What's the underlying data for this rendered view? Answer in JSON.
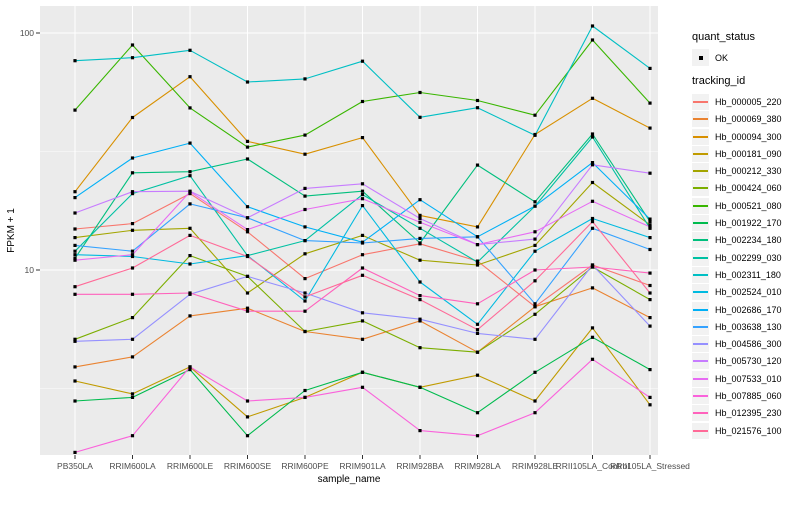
{
  "figure": {
    "panel_bg": "#EBEBEB",
    "grid_color": "#FFFFFF",
    "axis_text_color": "#4D4D4D",
    "tick_color": "#333333",
    "legend_key_bg": "#F2F2F2"
  },
  "legend": {
    "quant_status": {
      "title": "quant_status",
      "items": [
        {
          "label": "OK",
          "symbol": "black-point"
        }
      ]
    },
    "tracking": {
      "title": "tracking_id"
    }
  },
  "chart_data": {
    "type": "line",
    "title": "",
    "xlabel": "sample_name",
    "ylabel": "FPKM + 1",
    "yscale": "log10",
    "ylim": [
      1.6,
      127
    ],
    "yticks": [
      100,
      10
    ],
    "minor_gridlines": [
      31.6,
      3.16
    ],
    "grid": true,
    "legend_position": "right",
    "point_color": "#000000",
    "categories": [
      "PB350LA",
      "RRIM600LA",
      "RRIM600LE",
      "RRIM600SE",
      "RRIM600PE",
      "RRIM901LA",
      "RRIM928BA",
      "RRIM928LA",
      "RRIM928LE",
      "RRII105LA_Control",
      "RRII105LA_Stressed"
    ],
    "series": [
      {
        "name": "Hb_000005_220",
        "color": "#F8766D",
        "values": [
          14.9,
          15.7,
          21.0,
          14.5,
          9.2,
          11.6,
          12.9,
          10.9,
          7.0,
          10.5,
          8.6
        ]
      },
      {
        "name": "Hb_000069_380",
        "color": "#EA8331",
        "values": [
          3.9,
          4.3,
          6.4,
          6.9,
          5.5,
          5.1,
          6.1,
          4.5,
          7.0,
          8.4,
          6.3
        ]
      },
      {
        "name": "Hb_000094_300",
        "color": "#D89000",
        "values": [
          21.4,
          44.0,
          65.4,
          34.9,
          30.8,
          36.2,
          17.0,
          15.2,
          37.3,
          53.0,
          39.7
        ]
      },
      {
        "name": "Hb_000181_090",
        "color": "#C09B00",
        "values": [
          3.4,
          3.0,
          3.9,
          2.4,
          2.9,
          3.7,
          3.2,
          3.6,
          2.8,
          5.7,
          2.7
        ]
      },
      {
        "name": "Hb_000212_330",
        "color": "#A3A500",
        "values": [
          13.7,
          14.7,
          15.0,
          8.0,
          11.7,
          14.0,
          11.0,
          10.5,
          12.7,
          23.4,
          15.5
        ]
      },
      {
        "name": "Hb_000424_060",
        "color": "#7CAE00",
        "values": [
          5.1,
          6.3,
          11.5,
          9.4,
          5.5,
          6.1,
          4.7,
          4.5,
          6.5,
          10.3,
          7.5
        ]
      },
      {
        "name": "Hb_000521_080",
        "color": "#39B600",
        "values": [
          47.3,
          89.0,
          48.3,
          33.0,
          37.1,
          51.4,
          56.1,
          51.9,
          45.0,
          93.4,
          50.6
        ]
      },
      {
        "name": "Hb_001922_170",
        "color": "#00BB4E",
        "values": [
          2.8,
          2.9,
          3.8,
          2.0,
          3.1,
          3.7,
          3.2,
          2.5,
          3.7,
          5.2,
          3.8
        ]
      },
      {
        "name": "Hb_002234_180",
        "color": "#00BF7D",
        "values": [
          11.2,
          25.7,
          26.0,
          29.4,
          20.5,
          21.5,
          13.0,
          27.7,
          19.4,
          37.5,
          16.0
        ]
      },
      {
        "name": "Hb_002299_030",
        "color": "#00C1A3",
        "values": [
          12.0,
          21.0,
          25.0,
          11.5,
          13.3,
          20.8,
          15.0,
          10.8,
          18.6,
          36.4,
          15.0
        ]
      },
      {
        "name": "Hb_002311_180",
        "color": "#00BFC4",
        "values": [
          76.4,
          78.7,
          84.5,
          62.1,
          64.0,
          76.0,
          44.1,
          48.4,
          37.0,
          107.0,
          70.9
        ]
      },
      {
        "name": "Hb_002524_010",
        "color": "#00BAE0",
        "values": [
          11.6,
          11.4,
          10.6,
          11.5,
          7.4,
          18.7,
          8.9,
          5.9,
          12.0,
          16.5,
          13.7
        ]
      },
      {
        "name": "Hb_002686_170",
        "color": "#00B0F6",
        "values": [
          20.2,
          29.7,
          34.3,
          18.5,
          15.2,
          13.1,
          19.8,
          13.8,
          18.6,
          28.4,
          16.4
        ]
      },
      {
        "name": "Hb_003638_130",
        "color": "#35A2FF",
        "values": [
          12.7,
          12.0,
          19.0,
          16.6,
          13.3,
          13.0,
          13.6,
          13.8,
          7.2,
          15.0,
          12.2
        ]
      },
      {
        "name": "Hb_004586_300",
        "color": "#9590FF",
        "values": [
          5.0,
          5.1,
          7.9,
          9.4,
          8.0,
          6.6,
          6.2,
          5.4,
          5.1,
          10.5,
          5.8
        ]
      },
      {
        "name": "Hb_005730_120",
        "color": "#C77CFF",
        "values": [
          17.4,
          21.4,
          21.5,
          16.6,
          22.1,
          23.1,
          16.5,
          12.8,
          13.5,
          27.8,
          25.6
        ]
      },
      {
        "name": "Hb_007533_010",
        "color": "#E76BF3",
        "values": [
          11.0,
          11.6,
          21.4,
          14.8,
          18.0,
          20.0,
          15.9,
          12.8,
          14.5,
          19.5,
          15.2
        ]
      },
      {
        "name": "Hb_007885_060",
        "color": "#FA62DB",
        "values": [
          1.7,
          2.0,
          3.9,
          2.8,
          2.9,
          3.2,
          2.1,
          2.0,
          2.5,
          4.2,
          2.9
        ]
      },
      {
        "name": "Hb_012395_230",
        "color": "#FF62BC",
        "values": [
          7.9,
          7.9,
          8.0,
          6.7,
          6.7,
          10.2,
          7.8,
          7.2,
          10.0,
          10.3,
          9.7
        ]
      },
      {
        "name": "Hb_021576_100",
        "color": "#FF6A98",
        "values": [
          8.5,
          10.2,
          14.0,
          11.4,
          7.7,
          9.5,
          7.5,
          5.6,
          9.0,
          16.0,
          8.0
        ]
      }
    ]
  }
}
